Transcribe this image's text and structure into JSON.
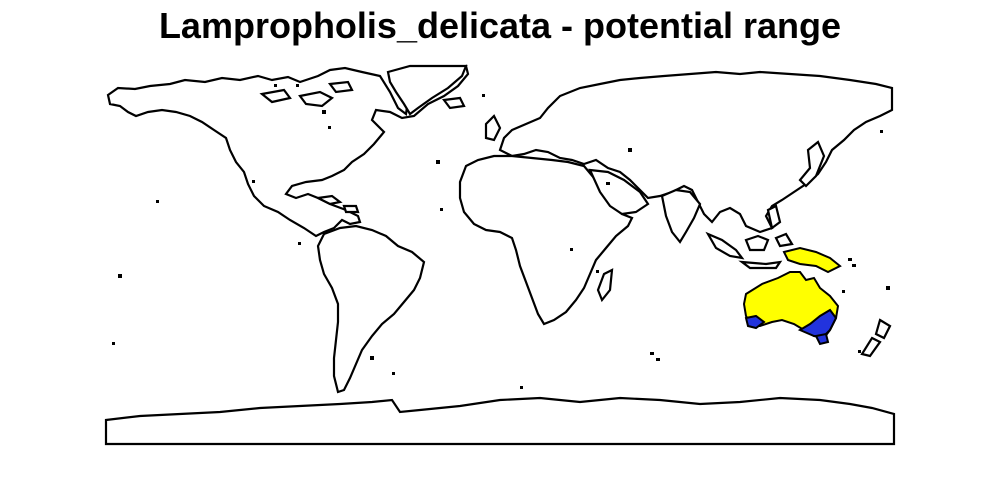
{
  "title": "Lampropholis_delicata - potential range",
  "legend_colors": {
    "potential_range": "#ffff00",
    "core_range": "#2233dd",
    "land_fill": "#ffffff",
    "outline": "#000000"
  }
}
